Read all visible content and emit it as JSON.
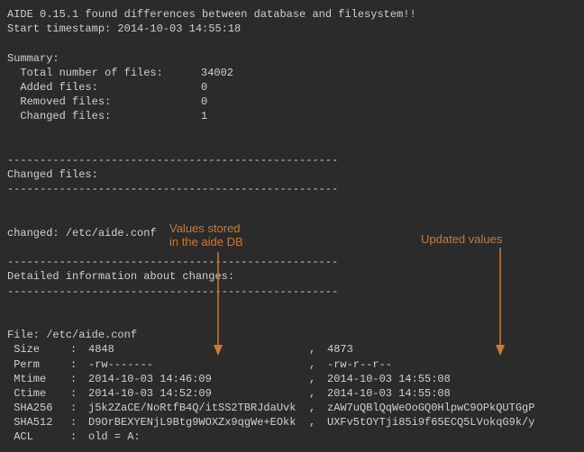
{
  "colors": {
    "background": "#2b2b2b",
    "text": "#d0d0d0",
    "annotation": "#cc7a33"
  },
  "typography": {
    "font_family": "Courier New",
    "font_size": 12,
    "annotation_font_family": "Arial",
    "annotation_font_size": 13
  },
  "header": {
    "line1": "AIDE 0.15.1 found differences between database and filesystem!!",
    "line2": "Start timestamp: 2014-10-03 14:55:18"
  },
  "summary": {
    "title": "Summary:",
    "rows": [
      {
        "label": "  Total number of files:",
        "value": "34002"
      },
      {
        "label": "  Added files:",
        "value": "0"
      },
      {
        "label": "  Removed files:",
        "value": "0"
      },
      {
        "label": "  Changed files:",
        "value": "1"
      }
    ]
  },
  "separator": "---------------------------------------------------",
  "section_changed": {
    "title": "Changed files:",
    "item": "changed: /etc/aide.conf"
  },
  "section_detail": {
    "title": "Detailed information about changes:"
  },
  "file_block": {
    "file_line": "File: /etc/aide.conf",
    "rows": [
      {
        "name": "Size",
        "old": "4848",
        "new": "4873"
      },
      {
        "name": "Perm",
        "old": "-rw-------",
        "new": "-rw-r--r--"
      },
      {
        "name": "Mtime",
        "old": "2014-10-03 14:46:09",
        "new": "2014-10-03 14:55:08"
      },
      {
        "name": "Ctime",
        "old": "2014-10-03 14:52:09",
        "new": "2014-10-03 14:55:08"
      },
      {
        "name": "SHA256",
        "old": "j5k2ZaCE/NoRtfB4Q/itSS2TBRJdaUvk",
        "new": "zAW7uQBlQqWeOoGQ0HlpwC9OPkQUTGgP"
      },
      {
        "name": "SHA512",
        "old": "D9OrBEXYENjL9Btg9WOXZx9qgWe+EOkk",
        "new": "UXFv5tOYTji85i9f65ECQ5LVokqG9k/y"
      },
      {
        "name": "ACL",
        "old": "old = A:",
        "new": ""
      }
    ]
  },
  "annotations": {
    "left_l1": "Values stored",
    "left_l2": "in the aide DB",
    "right": "Updated values"
  }
}
